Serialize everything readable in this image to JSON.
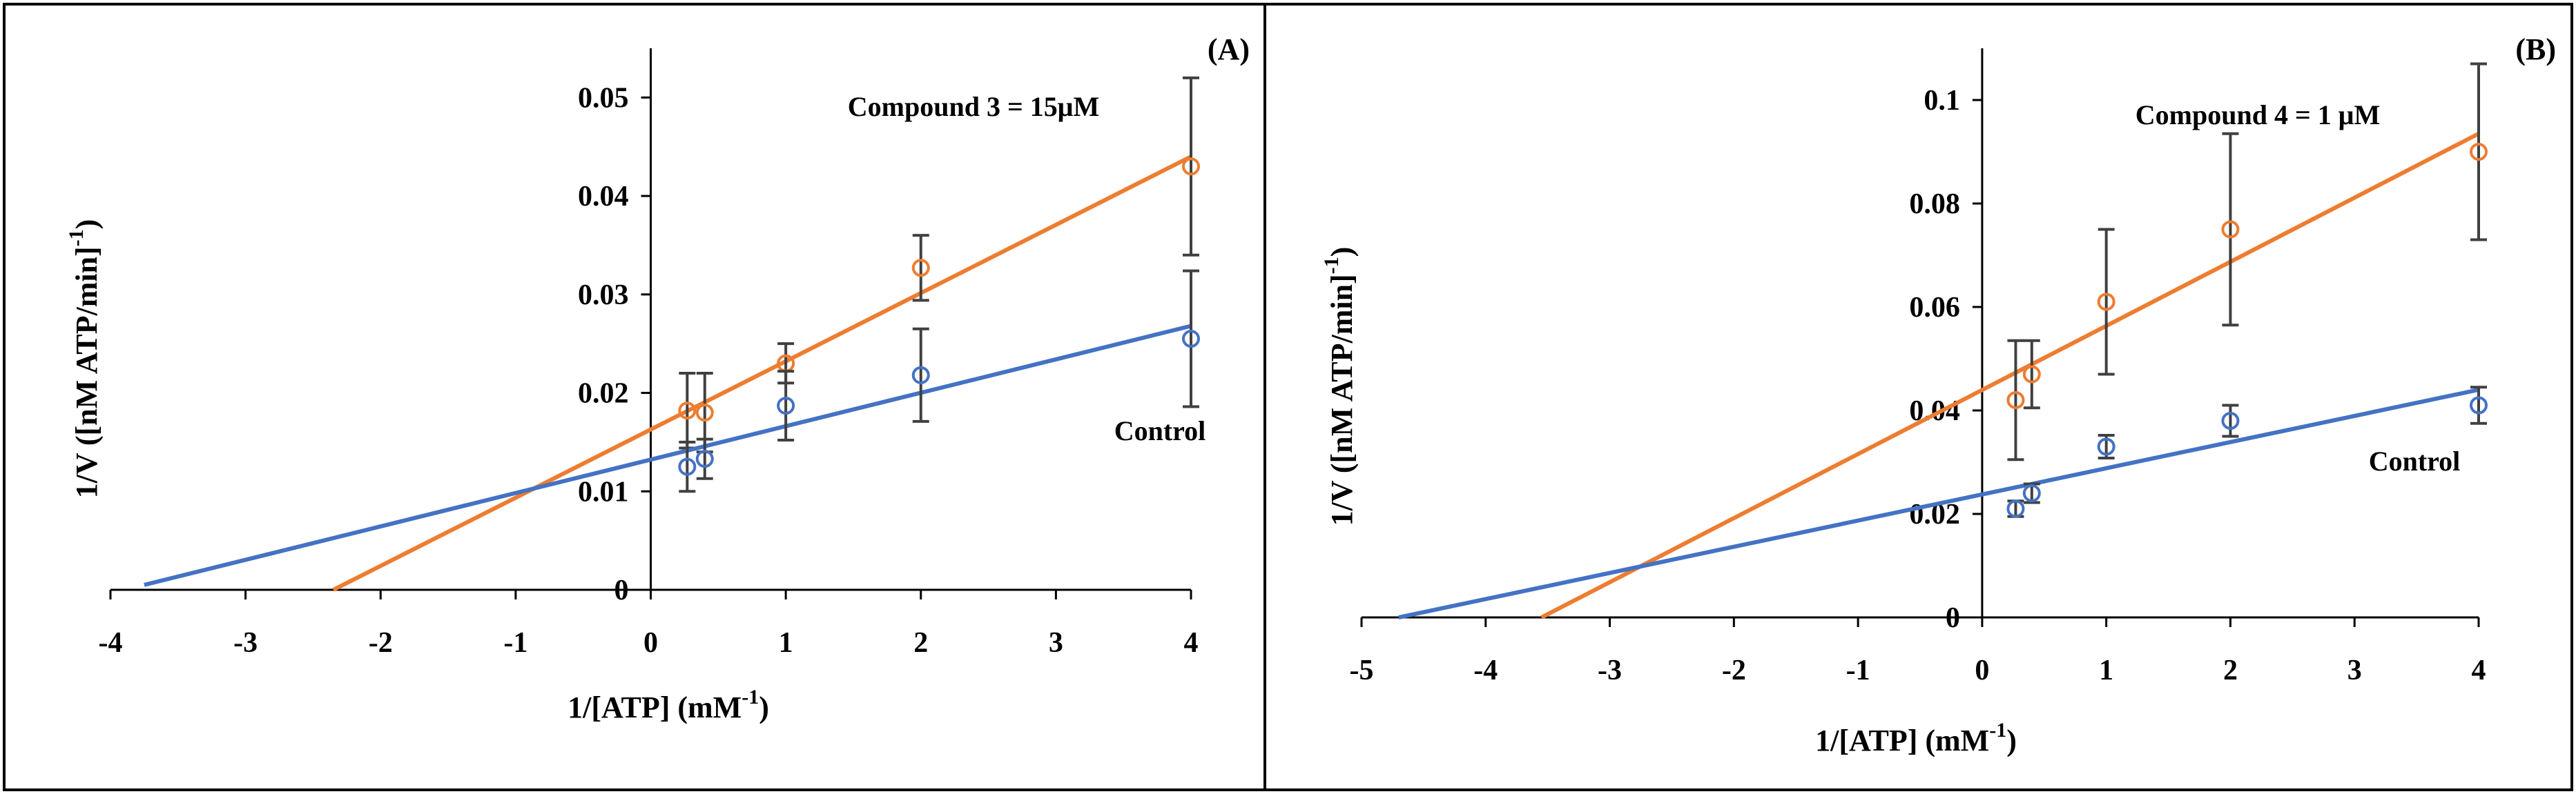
{
  "figure": {
    "panels": [
      "A",
      "B"
    ]
  },
  "chart_data": [
    {
      "type": "scatter",
      "panel_label": "(A)",
      "xlabel": "1/[ATP] (mM",
      "xlabel_sup": "-1",
      "xlabel_tail": ")",
      "ylabel": "1/V ([nM ATP/min]",
      "ylabel_sup": "-1",
      "ylabel_tail": ")",
      "xlim": [
        -4,
        4
      ],
      "ylim": [
        0,
        0.055
      ],
      "x_ticks": [
        -4,
        -3,
        -2,
        -1,
        0,
        1,
        2,
        3,
        4
      ],
      "y_ticks": [
        0,
        0.01,
        0.02,
        0.03,
        0.04,
        0.05
      ],
      "x_tick_labels": [
        "-4",
        "-3",
        "-2",
        "-1",
        "0",
        "1",
        "2",
        "3",
        "4"
      ],
      "y_tick_labels": [
        "0",
        "0.01",
        "0.02",
        "0.03",
        "0.04",
        "0.05"
      ],
      "series": [
        {
          "name": "Compound 3 = 15μM",
          "color": "#ED7D31",
          "x": [
            0.27,
            0.4,
            1,
            2,
            4
          ],
          "y": [
            0.0182,
            0.018,
            0.023,
            0.0327,
            0.043
          ],
          "error": [
            0.0038,
            0.004,
            0.002,
            0.0033,
            0.009
          ],
          "fit": {
            "x": [
              -2.35,
              4
            ],
            "y": [
              0.0,
              0.044
            ]
          },
          "label_pos": "top-center"
        },
        {
          "name": "Control",
          "color": "#4472C4",
          "x": [
            0.27,
            0.4,
            1,
            2,
            4
          ],
          "y": [
            0.0125,
            0.0133,
            0.0187,
            0.0218,
            0.0255
          ],
          "error": [
            0.0025,
            0.002,
            0.0035,
            0.0047,
            0.0069
          ],
          "fit": {
            "x": [
              -3.75,
              4
            ],
            "y": [
              0.0005,
              0.0268
            ]
          },
          "label_pos": "right"
        }
      ]
    },
    {
      "type": "scatter",
      "panel_label": "(B)",
      "xlabel": "1/[ATP] (mM",
      "xlabel_sup": "-1",
      "xlabel_tail": ")",
      "ylabel": "1/V ([nM ATP/min]",
      "ylabel_sup": "-1",
      "ylabel_tail": ")",
      "xlim": [
        -5,
        4
      ],
      "ylim": [
        0,
        0.11
      ],
      "x_ticks": [
        -5,
        -4,
        -3,
        -2,
        -1,
        0,
        1,
        2,
        3,
        4
      ],
      "y_ticks": [
        0,
        0.02,
        0.04,
        0.06,
        0.08,
        0.1
      ],
      "x_tick_labels": [
        "-5",
        "-4",
        "-3",
        "-2",
        "-1",
        "0",
        "1",
        "2",
        "3",
        "4"
      ],
      "y_tick_labels": [
        "0",
        "0.02",
        "0.04",
        "0.06",
        "0.08",
        "0.1"
      ],
      "series": [
        {
          "name": "Compound 4 = 1 μM",
          "color": "#ED7D31",
          "x": [
            0.27,
            0.4,
            1,
            2,
            4
          ],
          "y": [
            0.042,
            0.047,
            0.061,
            0.075,
            0.09
          ],
          "error": [
            0.0115,
            0.0065,
            0.014,
            0.0185,
            0.017
          ],
          "fit": {
            "x": [
              -3.55,
              4
            ],
            "y": [
              0.0,
              0.0935
            ]
          },
          "label_pos": "top-center"
        },
        {
          "name": "Control",
          "color": "#4472C4",
          "x": [
            0.27,
            0.4,
            1,
            2,
            4
          ],
          "y": [
            0.021,
            0.024,
            0.033,
            0.038,
            0.041
          ],
          "error": [
            0.0015,
            0.0018,
            0.0022,
            0.003,
            0.0035
          ],
          "fit": {
            "x": [
              -4.7,
              4
            ],
            "y": [
              0.0,
              0.044
            ]
          },
          "label_pos": "right"
        }
      ]
    }
  ]
}
